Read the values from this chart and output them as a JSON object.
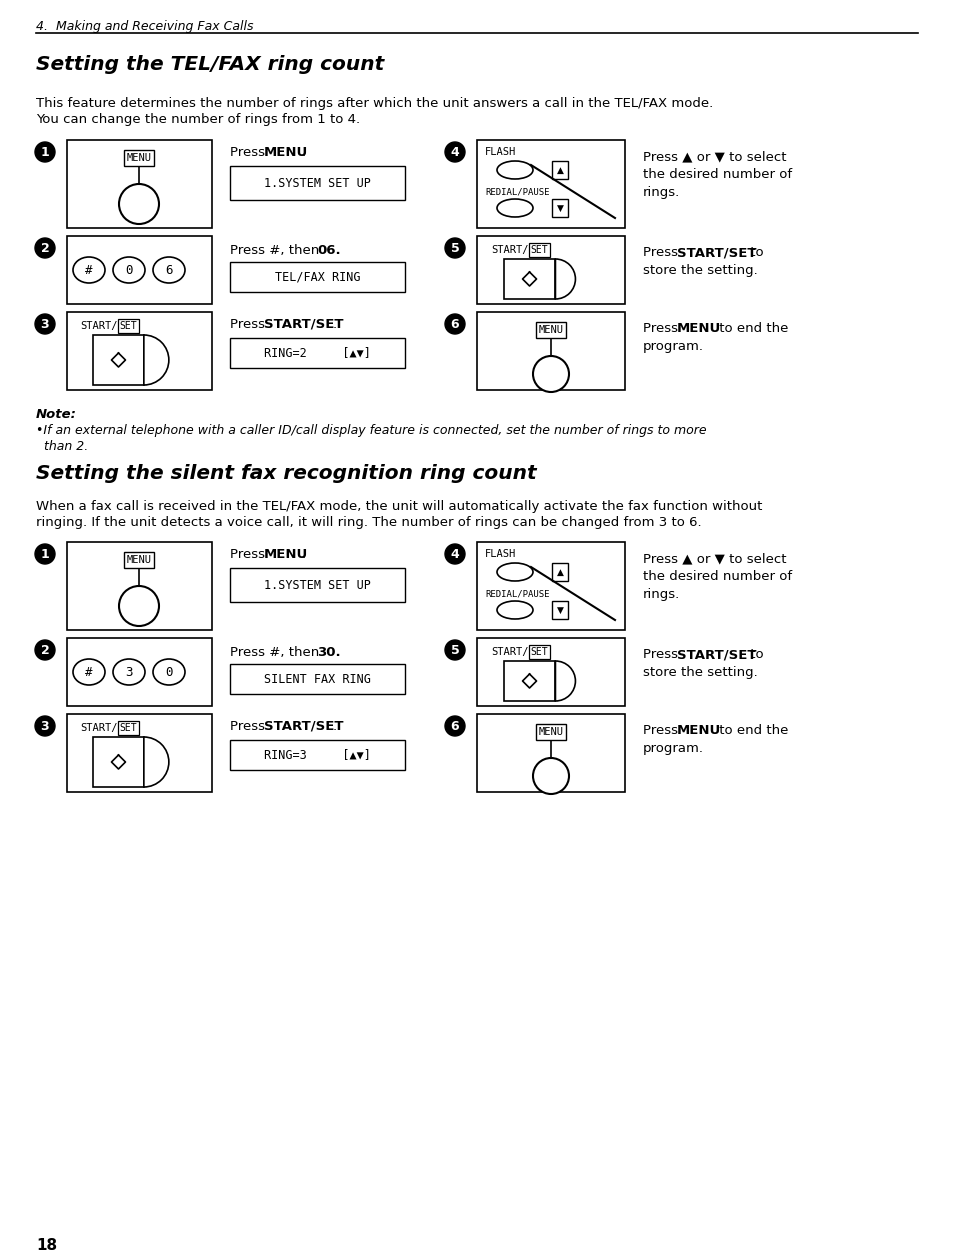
{
  "page_number": "18",
  "section_header": "4.  Making and Receiving Fax Calls",
  "section1_title": "Setting the TEL/FAX ring count",
  "section1_desc_line1": "This feature determines the number of rings after which the unit answers a call in the TEL/FAX mode.",
  "section1_desc_line2": "You can change the number of rings from 1 to 4.",
  "section2_title": "Setting the silent fax recognition ring count",
  "section2_desc_line1": "When a fax call is received in the TEL/FAX mode, the unit will automatically activate the fax function without",
  "section2_desc_line2": "ringing. If the unit detects a voice call, it will ring. The number of rings can be changed from 3 to 6.",
  "note_title": "Note:",
  "note_bullet": "•If an external telephone with a caller ID/call display feature is connected, set the number of rings to more",
  "note_bullet2": "  than 2.",
  "bg_color": "#ffffff"
}
